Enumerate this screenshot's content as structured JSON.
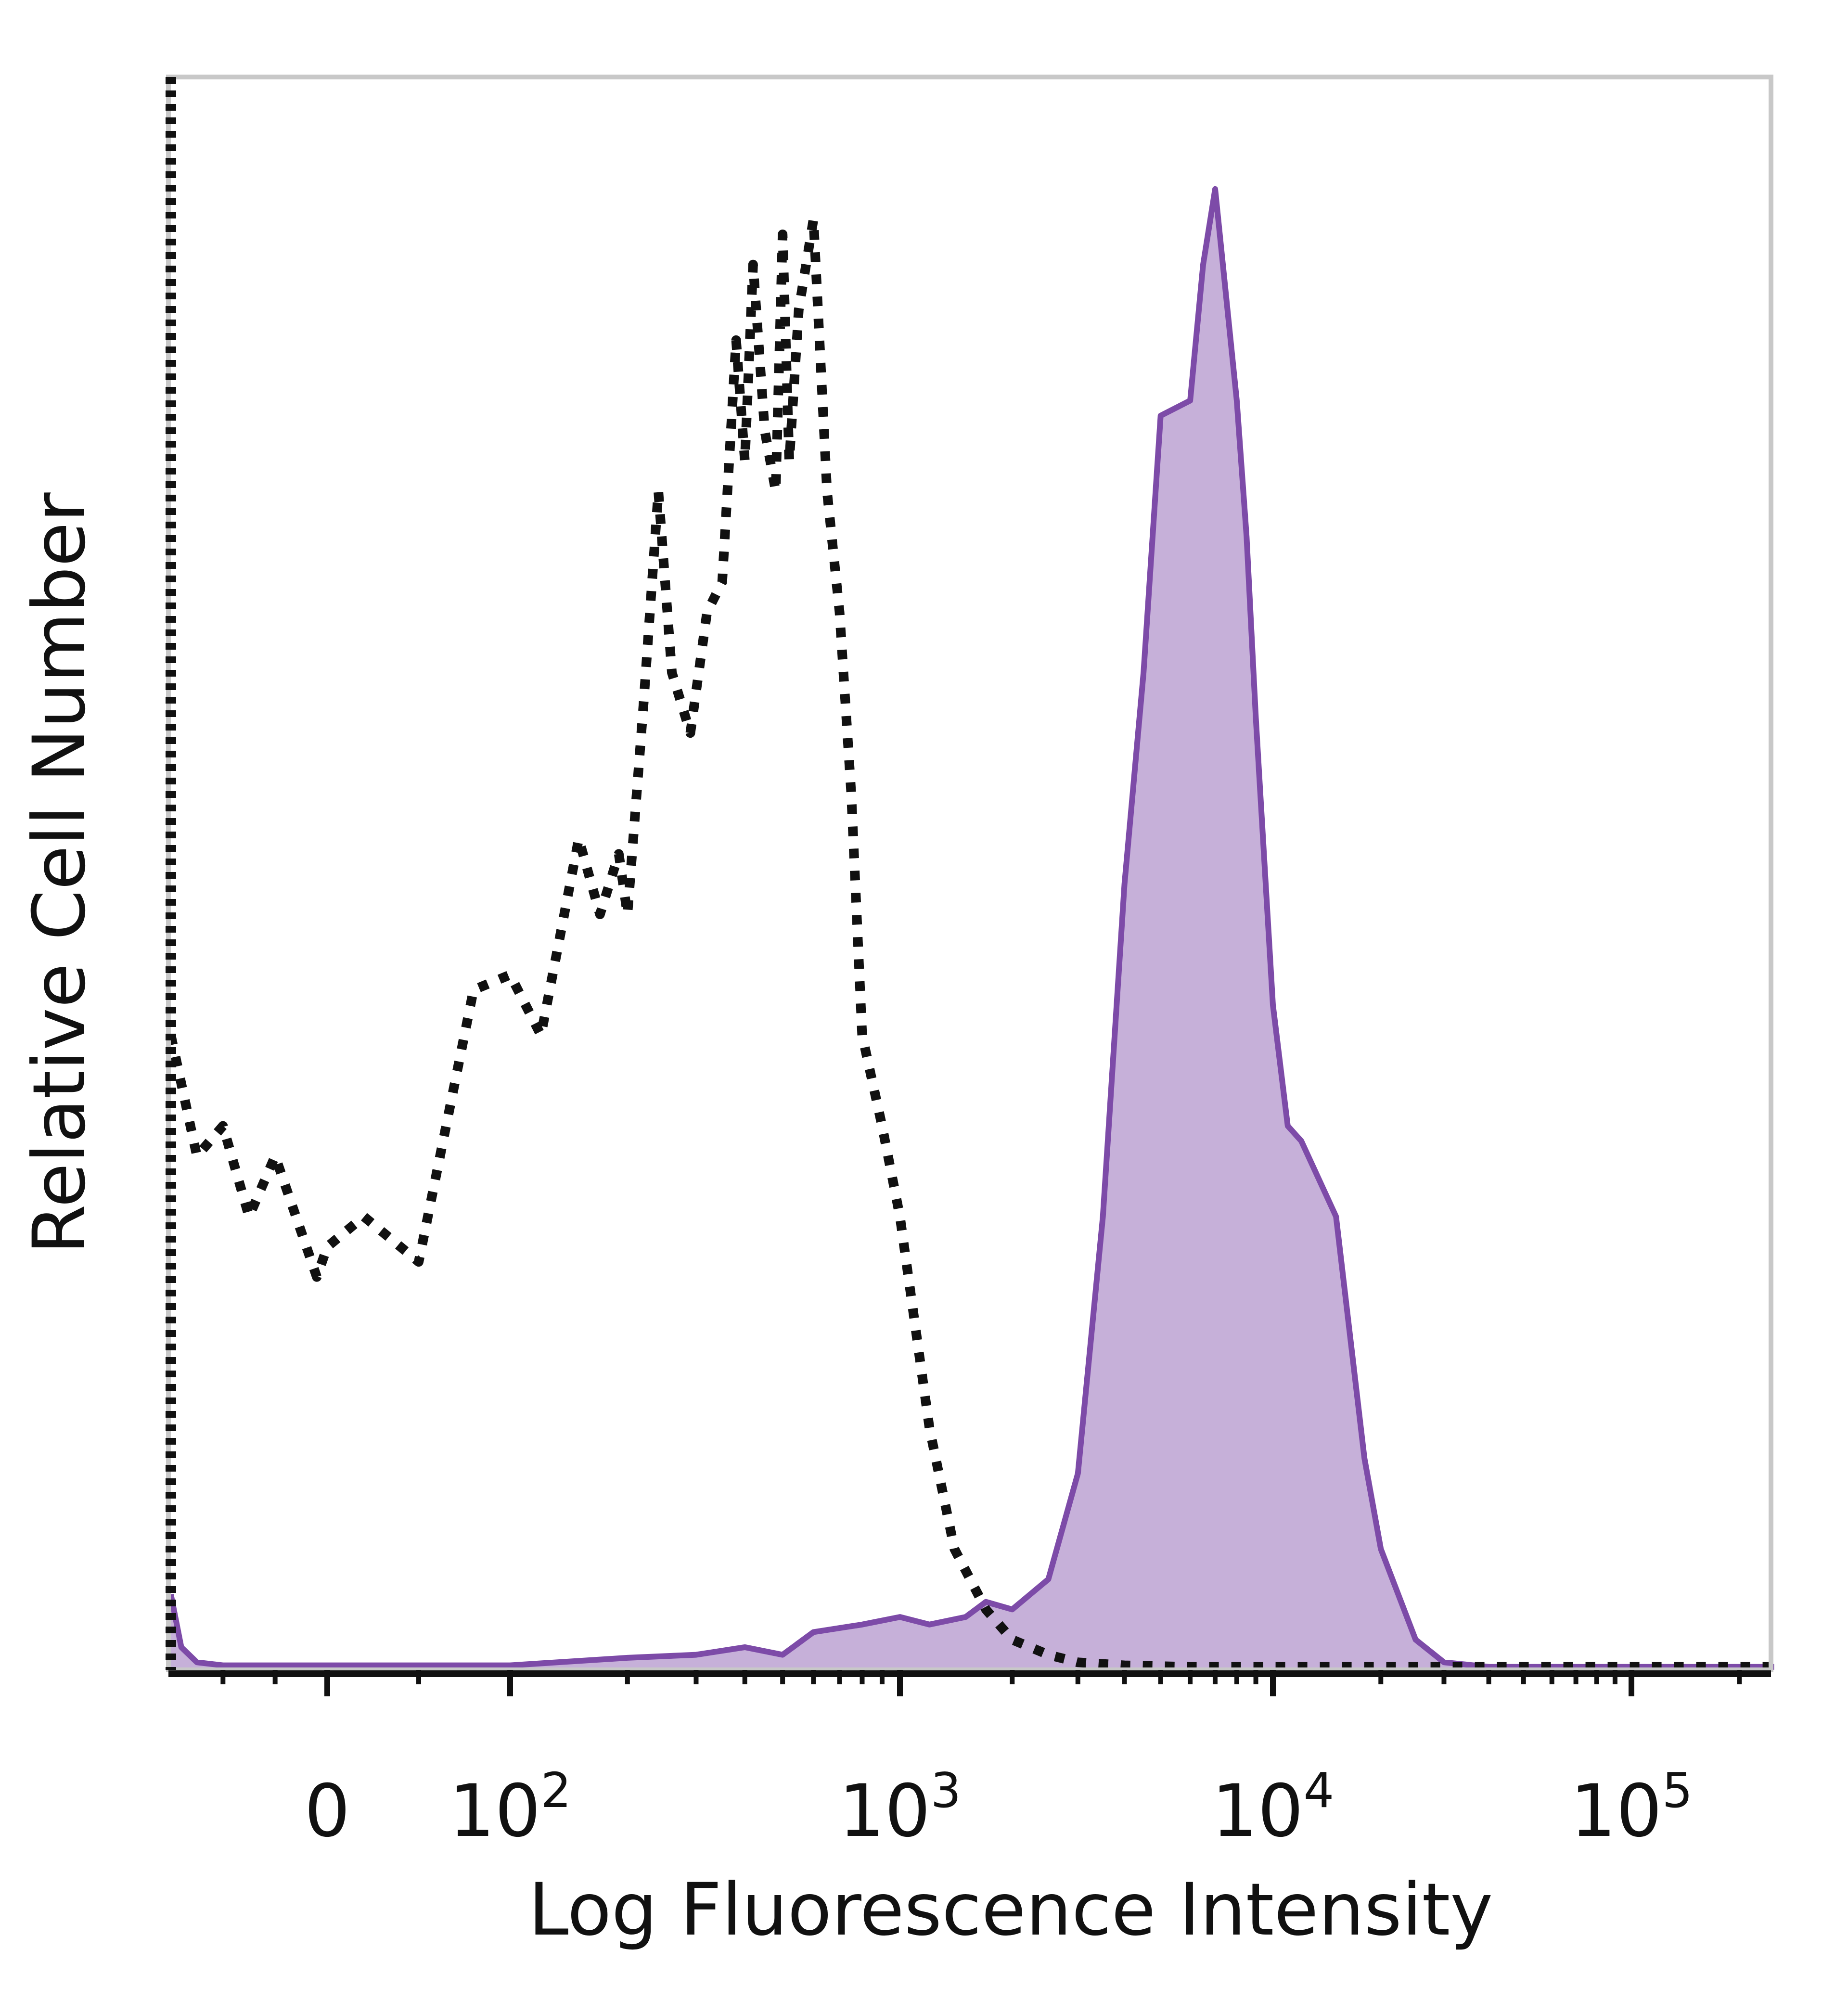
{
  "chart_data": {
    "type": "area",
    "xlabel": "Log Fluorescence Intensity",
    "ylabel": "Relative Cell Number",
    "x_scale": "biexponential",
    "xlim": [
      -300,
      250000
    ],
    "ylim": [
      0,
      100
    ],
    "grid": false,
    "legend": "none",
    "x_ticks": [
      {
        "value": 0,
        "base": "0",
        "exp": ""
      },
      {
        "value": 100,
        "base": "10",
        "exp": "2"
      },
      {
        "value": 1000,
        "base": "10",
        "exp": "3"
      },
      {
        "value": 10000,
        "base": "10",
        "exp": "4"
      },
      {
        "value": 100000,
        "base": "10",
        "exp": "5"
      }
    ],
    "series": [
      {
        "style": "dotted",
        "color": "#111111",
        "x": [
          -300,
          -250,
          -200,
          -150,
          -100,
          -60,
          -20,
          0,
          20,
          50,
          80,
          100,
          120,
          150,
          170,
          190,
          200,
          220,
          240,
          260,
          290,
          320,
          350,
          380,
          400,
          420,
          450,
          480,
          500,
          520,
          550,
          600,
          650,
          700,
          750,
          800,
          900,
          1000,
          1200,
          1400,
          1700,
          2000,
          2500,
          3000,
          4000,
          6000,
          10000,
          30000,
          100000,
          250000
        ],
        "y": [
          42,
          34,
          36,
          30,
          34,
          30,
          26,
          28,
          30,
          27,
          45,
          46,
          42,
          55,
          50,
          54,
          50,
          64,
          78,
          66,
          62,
          70,
          72,
          88,
          80,
          93,
          82,
          78,
          95,
          80,
          90,
          96,
          78,
          70,
          58,
          42,
          36,
          30,
          16,
          8,
          4,
          2,
          1,
          0.5,
          0.3,
          0.2,
          0.2,
          0.2,
          0.2,
          0.2
        ]
      },
      {
        "style": "filled",
        "color": "#7d4ba8",
        "fill": "#c6b0d9",
        "x": [
          -300,
          -280,
          -250,
          -200,
          0,
          100,
          200,
          300,
          400,
          500,
          600,
          800,
          1000,
          1200,
          1500,
          1700,
          2000,
          2500,
          3000,
          3500,
          4000,
          4500,
          5000,
          6000,
          6500,
          7000,
          8000,
          8500,
          9000,
          10000,
          11000,
          12000,
          15000,
          18000,
          20000,
          25000,
          30000,
          40000,
          60000,
          100000,
          250000
        ],
        "y": [
          5,
          1.5,
          0.5,
          0.3,
          0.3,
          0.3,
          0.8,
          1,
          1.5,
          1,
          2.5,
          3,
          3.5,
          3,
          3.5,
          4.5,
          4,
          6,
          13,
          30,
          52,
          66,
          83,
          84,
          93,
          98,
          84,
          75,
          63,
          44,
          36,
          35,
          30,
          14,
          8,
          2,
          0.5,
          0.2,
          0.2,
          0.2,
          0.2
        ]
      }
    ]
  }
}
